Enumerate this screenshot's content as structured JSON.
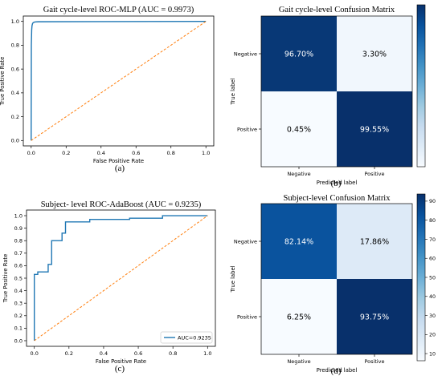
{
  "chart_data": [
    {
      "type": "line",
      "panel_label": "(a)",
      "title": "Gait cycle-level ROC-MLP (AUC = 0.9973)",
      "xlabel": "False Positive Rate",
      "ylabel": "True Positive Rate",
      "xlim": [
        0,
        1
      ],
      "ylim": [
        0,
        1
      ],
      "xticks": [
        "0.0",
        "0.2",
        "0.4",
        "0.6",
        "0.8",
        "1.0"
      ],
      "yticks": [
        "0.0",
        "0.2",
        "0.4",
        "0.6",
        "0.8",
        "1.0"
      ],
      "grid": false,
      "legend": null,
      "series": [
        {
          "color": "#1f77b4",
          "style": "solid",
          "x": [
            0,
            0.001,
            0.003,
            0.005,
            0.008,
            0.012,
            0.02,
            0.04,
            1.0
          ],
          "y": [
            0,
            0.8,
            0.93,
            0.965,
            0.982,
            0.99,
            0.995,
            0.997,
            1.0
          ]
        },
        {
          "color": "#ff7f0e",
          "style": "dashed",
          "x": [
            0,
            1
          ],
          "y": [
            0,
            1
          ]
        }
      ]
    },
    {
      "type": "heatmap",
      "panel_label": "(b)",
      "title": "Gait cycle-level Confusion Matrix",
      "xlabel": "Predicted label",
      "ylabel": "True label",
      "x_categories": [
        "Negative",
        "Positive"
      ],
      "y_categories": [
        "Negative",
        "Positive"
      ],
      "values": [
        [
          96.7,
          3.3
        ],
        [
          0.45,
          99.55
        ]
      ],
      "cell_labels": [
        [
          "96.70%",
          "3.30%"
        ],
        [
          "0.45%",
          "99.55%"
        ]
      ],
      "colormap": "Blues",
      "colorbar_ticks": [],
      "vmin": 0.45,
      "vmax": 99.55
    },
    {
      "type": "line",
      "panel_label": "(c)",
      "title": "Subject- level ROC-AdaBoost (AUC = 0.9235)",
      "xlabel": "False Positive Rate",
      "ylabel": "True Positive Rate",
      "xlim": [
        0,
        1
      ],
      "ylim": [
        0,
        1
      ],
      "xticks": [
        "0.0",
        "0.2",
        "0.4",
        "0.6",
        "0.8",
        "1.0"
      ],
      "yticks": [
        "0.0",
        "0.1",
        "0.2",
        "0.3",
        "0.4",
        "0.5",
        "0.6",
        "0.7",
        "0.8",
        "0.9",
        "1.0"
      ],
      "grid": false,
      "legend": {
        "position": "bottom-right",
        "entries": [
          "AUC=0.9235"
        ]
      },
      "series": [
        {
          "name": "AUC=0.9235",
          "color": "#1f77b4",
          "style": "solid",
          "x": [
            0,
            0,
            0.02,
            0.02,
            0.05,
            0.05,
            0.08,
            0.08,
            0.1,
            0.1,
            0.13,
            0.13,
            0.16,
            0.16,
            0.18,
            0.18,
            0.32,
            0.32,
            0.55,
            0.55,
            0.74,
            0.74,
            1.0
          ],
          "y": [
            0,
            0.53,
            0.53,
            0.55,
            0.55,
            0.55,
            0.55,
            0.61,
            0.61,
            0.8,
            0.8,
            0.8,
            0.8,
            0.86,
            0.86,
            0.95,
            0.95,
            0.97,
            0.97,
            0.98,
            0.98,
            1.0,
            1.0
          ]
        },
        {
          "color": "#ff7f0e",
          "style": "dashed",
          "x": [
            0,
            1
          ],
          "y": [
            0,
            1
          ]
        }
      ]
    },
    {
      "type": "heatmap",
      "panel_label": "(d)",
      "title": "Subject-level Confusion Matrix",
      "xlabel": "Predicted label",
      "ylabel": "True label",
      "x_categories": [
        "Negative",
        "Positive"
      ],
      "y_categories": [
        "Negative",
        "Positive"
      ],
      "values": [
        [
          82.14,
          17.86
        ],
        [
          6.25,
          93.75
        ]
      ],
      "cell_labels": [
        [
          "82.14%",
          "17.86%"
        ],
        [
          "6.25%",
          "93.75%"
        ]
      ],
      "colormap": "Blues",
      "colorbar_ticks": [
        10,
        20,
        30,
        40,
        50,
        60,
        70,
        80,
        90
      ],
      "vmin": 6.25,
      "vmax": 93.75
    }
  ]
}
